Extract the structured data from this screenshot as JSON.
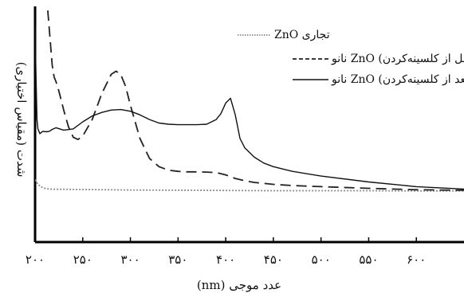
{
  "chart_data": {
    "type": "line",
    "title": "",
    "xlabel": "عدد موجی (nm)",
    "ylabel": "شدت (مقیاس اختیاری)",
    "xlim": [
      200,
      650
    ],
    "ylim": [
      0,
      1
    ],
    "x_ticks": [
      200,
      250,
      300,
      350,
      400,
      450,
      500,
      550,
      600
    ],
    "x_tick_labels": [
      "۲۰۰",
      "۲۵۰",
      "۳۰۰",
      "۳۵۰",
      "۴۰۰",
      "۴۵۰",
      "۵۰۰",
      "۵۵۰",
      "۶۰۰"
    ],
    "legend_position": "top-right",
    "grid": false,
    "series": [
      {
        "name": "ZnO تجاری",
        "style": "dotted",
        "color": "#8a8a8a",
        "x": [
          200,
          203,
          206,
          210,
          215,
          220,
          230,
          250,
          300,
          350,
          400,
          450,
          500,
          550,
          600,
          650
        ],
        "y": [
          0.265,
          0.245,
          0.235,
          0.228,
          0.225,
          0.224,
          0.224,
          0.223,
          0.221,
          0.22,
          0.219,
          0.218,
          0.218,
          0.218,
          0.217,
          0.217
        ]
      },
      {
        "name": "نانو ZnO (قبل از کلسینه‌کردن)",
        "style": "dashed",
        "color": "#222222",
        "x": [
          212,
          214,
          216,
          218,
          220,
          222,
          225,
          230,
          235,
          240,
          245,
          250,
          260,
          270,
          280,
          285,
          290,
          295,
          300,
          310,
          320,
          330,
          340,
          350,
          360,
          370,
          380,
          390,
          400,
          410,
          420,
          430,
          450,
          470,
          500,
          550,
          600,
          650
        ],
        "y": [
          1.05,
          0.95,
          0.85,
          0.75,
          0.7,
          0.68,
          0.64,
          0.56,
          0.49,
          0.445,
          0.435,
          0.45,
          0.52,
          0.63,
          0.712,
          0.725,
          0.71,
          0.66,
          0.58,
          0.44,
          0.355,
          0.32,
          0.305,
          0.3,
          0.298,
          0.298,
          0.297,
          0.295,
          0.285,
          0.27,
          0.26,
          0.253,
          0.245,
          0.24,
          0.235,
          0.228,
          0.222,
          0.22
        ]
      },
      {
        "name": "نانو ZnO (بعد از کلسینه‌کردن)",
        "style": "solid",
        "color": "#111111",
        "x": [
          200,
          201,
          202,
          203,
          205,
          208,
          212,
          215,
          218,
          222,
          230,
          240,
          250,
          260,
          270,
          280,
          290,
          300,
          310,
          320,
          330,
          340,
          350,
          360,
          370,
          380,
          390,
          395,
          400,
          405,
          410,
          415,
          420,
          430,
          440,
          450,
          470,
          500,
          550,
          600,
          650
        ],
        "y": [
          0.92,
          0.7,
          0.52,
          0.48,
          0.46,
          0.47,
          0.468,
          0.47,
          0.478,
          0.485,
          0.475,
          0.48,
          0.51,
          0.535,
          0.55,
          0.56,
          0.562,
          0.555,
          0.54,
          0.52,
          0.505,
          0.5,
          0.498,
          0.498,
          0.498,
          0.5,
          0.52,
          0.545,
          0.59,
          0.61,
          0.54,
          0.44,
          0.4,
          0.36,
          0.335,
          0.32,
          0.3,
          0.28,
          0.255,
          0.235,
          0.225
        ]
      }
    ]
  }
}
